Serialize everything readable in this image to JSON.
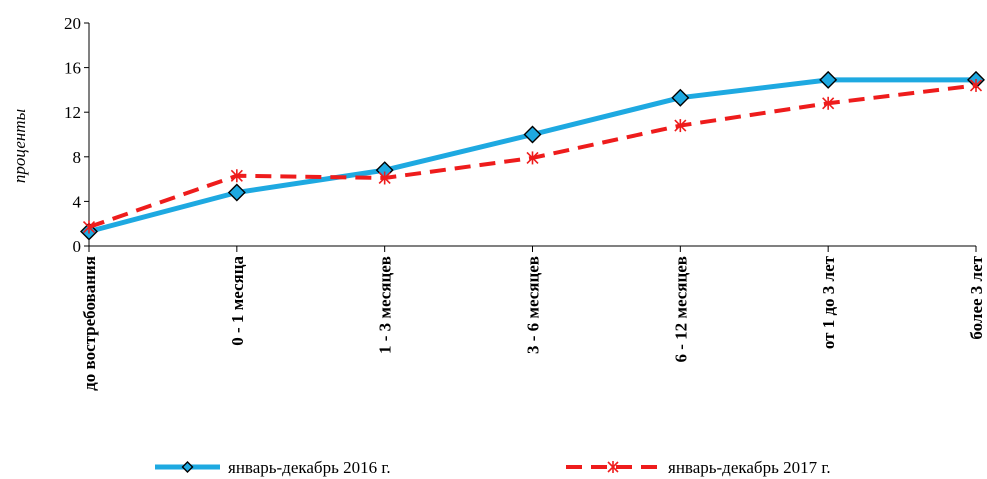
{
  "chart_data": {
    "type": "line",
    "ylabel": "проценты",
    "ylim": [
      0,
      20
    ],
    "yticks": [
      0,
      4,
      8,
      12,
      16,
      20
    ],
    "grid": false,
    "legend_position": "bottom",
    "categories": [
      "до востребования",
      "0 - 1 месяца",
      "1 - 3 месяцев",
      "3 - 6 месяцев",
      "6 - 12 месяцев",
      "от 1 до 3 лет",
      "более 3 лет"
    ],
    "series": [
      {
        "name": "январь-декабрь 2016 г.",
        "color": "#1ea9e1",
        "marker": "diamond",
        "line_style": "solid",
        "values": [
          1.3,
          4.8,
          6.8,
          10.0,
          13.3,
          14.9,
          14.9
        ]
      },
      {
        "name": "январь-декабрь 2017 г.",
        "color": "#ee1c1c",
        "marker": "asterisk",
        "line_style": "dashed",
        "values": [
          1.7,
          6.3,
          6.1,
          7.9,
          10.8,
          12.8,
          14.4
        ]
      }
    ]
  }
}
